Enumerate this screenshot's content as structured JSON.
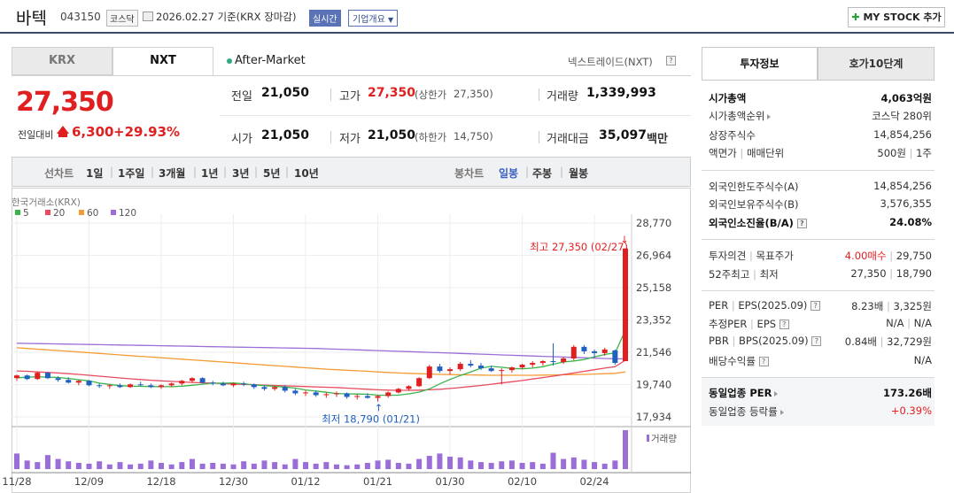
{
  "header": {
    "name": "바텍",
    "code": "043150",
    "market": "코스닥",
    "date_text": "2026.02.27  기준(KRX 장마감)",
    "realtime": "실시간",
    "company_btn": "기업개요",
    "mystock": "MY STOCK 추가"
  },
  "tabs": {
    "krx": "KRX",
    "nxt": "NXT"
  },
  "after_market": "After-Market",
  "nextrade_link": "넥스트레이드(NXT)",
  "quote": {
    "price": "27,350",
    "chg_label": "전일대비",
    "chg": "6,300",
    "chg_pct": "+29.93%",
    "prev_label": "전일",
    "prev": "21,050",
    "high_label": "고가",
    "high": "27,350",
    "upper_label": "(상한가",
    "upper": "27,350)",
    "volume_label": "거래량",
    "volume": "1,339,993",
    "open_label": "시가",
    "open": "21,050",
    "low_label": "저가",
    "low": "21,050",
    "lower_label": "(하한가",
    "lower": "14,750)",
    "amount_label": "거래대금",
    "amount": "35,097",
    "amount_unit": "백만"
  },
  "toolbar": {
    "linechart": "선차트",
    "d1": "1일",
    "w1": "1주일",
    "m3": "3개월",
    "y1": "1년",
    "y3": "3년",
    "y5": "5년",
    "y10": "10년",
    "candle": "봉차트",
    "daily": "일봉",
    "weekly": "주봉",
    "monthly": "월봉"
  },
  "colors": {
    "red": "#e02020",
    "blue": "#2060c0",
    "ma5": "#3cb44b",
    "ma20": "#e84a5f",
    "ma60": "#f39c33",
    "ma120": "#9b6dd6",
    "vol": "#9b6dd6"
  },
  "chart_data": {
    "type": "candlestick",
    "title": "한국거래소(KRX)",
    "legend": [
      "5",
      "20",
      "60",
      "120"
    ],
    "y_ticks": [
      28770,
      26964,
      25158,
      23352,
      21546,
      19740,
      17934
    ],
    "y_tick_labels": [
      "28,770",
      "26,964",
      "25,158",
      "23,352",
      "21,546",
      "19,740",
      "17,934"
    ],
    "ylim": [
      17934,
      28770
    ],
    "x_ticks": [
      {
        "label": "11/28",
        "i": 0
      },
      {
        "label": "12/09",
        "i": 7
      },
      {
        "label": "12/18",
        "i": 14
      },
      {
        "label": "12/30",
        "i": 21
      },
      {
        "label": "01/12",
        "i": 28
      },
      {
        "label": "01/21",
        "i": 35
      },
      {
        "label": "01/30",
        "i": 42
      },
      {
        "label": "02/10",
        "i": 49
      },
      {
        "label": "02/24",
        "i": 56
      }
    ],
    "max_label": "최고 27,350 (02/27)",
    "min_label": "최저 18,790 (01/21)",
    "volume_label": "거래량",
    "candles": [
      [
        20100,
        20300,
        19950,
        20250
      ],
      [
        20250,
        20300,
        20000,
        20050
      ],
      [
        20050,
        20450,
        20000,
        20400
      ],
      [
        20400,
        20450,
        20050,
        20100
      ],
      [
        20100,
        20200,
        19900,
        20000
      ],
      [
        20000,
        20150,
        19800,
        19850
      ],
      [
        19850,
        20000,
        19700,
        19950
      ],
      [
        19950,
        20000,
        19650,
        19700
      ],
      [
        19700,
        19800,
        19550,
        19650
      ],
      [
        19650,
        19750,
        19500,
        19700
      ],
      [
        19700,
        19800,
        19550,
        19600
      ],
      [
        19600,
        19800,
        19550,
        19750
      ],
      [
        19750,
        19900,
        19650,
        19700
      ],
      [
        19700,
        19800,
        19550,
        19600
      ],
      [
        19600,
        19750,
        19500,
        19700
      ],
      [
        19700,
        19850,
        19600,
        19800
      ],
      [
        19800,
        20000,
        19700,
        19950
      ],
      [
        19950,
        20150,
        19850,
        20100
      ],
      [
        20100,
        20150,
        19800,
        19850
      ],
      [
        19850,
        19950,
        19700,
        19800
      ],
      [
        19800,
        19900,
        19650,
        19700
      ],
      [
        19700,
        19850,
        19600,
        19800
      ],
      [
        19800,
        19900,
        19650,
        19750
      ],
      [
        19750,
        19800,
        19500,
        19600
      ],
      [
        19600,
        19700,
        19400,
        19500
      ],
      [
        19500,
        19650,
        19400,
        19600
      ],
      [
        19600,
        19700,
        19300,
        19400
      ],
      [
        19400,
        19500,
        19150,
        19250
      ],
      [
        19250,
        19400,
        19100,
        19300
      ],
      [
        19300,
        19400,
        19050,
        19150
      ],
      [
        19150,
        19300,
        19000,
        19200
      ],
      [
        19200,
        19350,
        19050,
        19250
      ],
      [
        19250,
        19300,
        18950,
        19050
      ],
      [
        19050,
        19200,
        18900,
        19100
      ],
      [
        19100,
        19250,
        18950,
        19000
      ],
      [
        19000,
        19150,
        18790,
        19100
      ],
      [
        19100,
        19350,
        19000,
        19300
      ],
      [
        19300,
        19550,
        19250,
        19500
      ],
      [
        19500,
        19700,
        19400,
        19650
      ],
      [
        19650,
        20150,
        19600,
        20100
      ],
      [
        20100,
        20850,
        20050,
        20750
      ],
      [
        20750,
        20900,
        20400,
        20500
      ],
      [
        20500,
        20700,
        20300,
        20600
      ],
      [
        20600,
        21000,
        20500,
        20900
      ],
      [
        20900,
        21100,
        20700,
        20800
      ],
      [
        20800,
        20950,
        20550,
        20650
      ],
      [
        20650,
        20800,
        20450,
        20500
      ],
      [
        20500,
        20650,
        19750,
        20550
      ],
      [
        20550,
        20750,
        20400,
        20700
      ],
      [
        20700,
        20900,
        20600,
        20850
      ],
      [
        20850,
        21050,
        20700,
        20950
      ],
      [
        20950,
        21100,
        20800,
        21050
      ],
      [
        21050,
        22050,
        20800,
        21000
      ],
      [
        21000,
        21300,
        20900,
        21200
      ],
      [
        21200,
        21950,
        21100,
        21850
      ],
      [
        21850,
        21950,
        21450,
        21600
      ],
      [
        21600,
        21700,
        21250,
        21500
      ],
      [
        21500,
        21800,
        21350,
        21700
      ],
      [
        21650,
        21700,
        20850,
        20950
      ],
      [
        21050,
        27350,
        21050,
        27350
      ]
    ],
    "volumes": [
      40,
      22,
      18,
      36,
      26,
      20,
      16,
      14,
      20,
      12,
      18,
      12,
      14,
      22,
      16,
      12,
      18,
      26,
      14,
      16,
      14,
      12,
      20,
      14,
      22,
      18,
      12,
      26,
      18,
      14,
      18,
      12,
      10,
      12,
      16,
      22,
      24,
      16,
      14,
      26,
      34,
      40,
      32,
      30,
      22,
      18,
      16,
      20,
      22,
      16,
      18,
      14,
      42,
      26,
      30,
      24,
      18,
      14,
      22,
      100
    ],
    "ma5": [
      20120,
      20150,
      20180,
      20150,
      20140,
      20080,
      20010,
      19950,
      19820,
      19750,
      19680,
      19650,
      19640,
      19630,
      19620,
      19620,
      19650,
      19700,
      19760,
      19820,
      19820,
      19830,
      19780,
      19720,
      19680,
      19640,
      19600,
      19540,
      19440,
      19380,
      19310,
      19240,
      19220,
      19210,
      19200,
      19150,
      19140,
      19150,
      19220,
      19320,
      19500,
      19780,
      20030,
      20250,
      20440,
      20660,
      20760,
      20710,
      20640,
      20620,
      20660,
      20740,
      20880,
      21000,
      21060,
      21140,
      21290,
      21420,
      21510,
      22780
    ],
    "ma20": [
      20500,
      20480,
      20450,
      20420,
      20390,
      20350,
      20310,
      20260,
      20210,
      20160,
      20110,
      20060,
      20020,
      19980,
      19950,
      19920,
      19890,
      19860,
      19840,
      19820,
      19790,
      19770,
      19750,
      19730,
      19710,
      19690,
      19670,
      19650,
      19630,
      19610,
      19590,
      19570,
      19540,
      19510,
      19480,
      19450,
      19430,
      19420,
      19420,
      19430,
      19450,
      19480,
      19520,
      19570,
      19630,
      19690,
      19760,
      19830,
      19900,
      19970,
      20050,
      20130,
      20210,
      20300,
      20390,
      20480,
      20570,
      20660,
      20740,
      21100
    ],
    "ma60": [
      21800,
      21760,
      21720,
      21680,
      21640,
      21600,
      21560,
      21520,
      21480,
      21440,
      21400,
      21360,
      21320,
      21280,
      21240,
      21200,
      21160,
      21120,
      21080,
      21040,
      21000,
      20960,
      20920,
      20880,
      20840,
      20800,
      20760,
      20720,
      20680,
      20640,
      20600,
      20570,
      20540,
      20510,
      20480,
      20450,
      20420,
      20390,
      20370,
      20350,
      20330,
      20310,
      20300,
      20290,
      20280,
      20270,
      20260,
      20260,
      20260,
      20260,
      20260,
      20270,
      20280,
      20290,
      20300,
      20310,
      20330,
      20350,
      20370,
      20450
    ],
    "ma120": [
      22050,
      22040,
      22030,
      22020,
      22010,
      22000,
      21990,
      21980,
      21970,
      21960,
      21950,
      21940,
      21930,
      21920,
      21910,
      21900,
      21890,
      21880,
      21870,
      21860,
      21850,
      21840,
      21830,
      21820,
      21810,
      21800,
      21790,
      21780,
      21770,
      21760,
      21740,
      21720,
      21700,
      21680,
      21660,
      21640,
      21620,
      21600,
      21580,
      21560,
      21540,
      21520,
      21500,
      21480,
      21460,
      21440,
      21420,
      21400,
      21380,
      21360,
      21340,
      21320,
      21300,
      21280,
      21260,
      21240,
      21220,
      21200,
      21180,
      21180
    ]
  },
  "panel": {
    "tab1": "투자정보",
    "tab2": "호가10단계",
    "mktcap_l": "시가총액",
    "mktcap_v": "4,063억원",
    "rank_l": "시가총액순위",
    "rank_v": "코스닥 280위",
    "shares_l": "상장주식수",
    "shares_v": "14,854,256",
    "face_l": "액면가",
    "face_l2": "매매단위",
    "face_v": "500원",
    "unit_v": "1주",
    "fl_l": "외국인한도주식수(A)",
    "fl_v": "14,854,256",
    "fh_l": "외국인보유주식수(B)",
    "fh_v": "3,576,355",
    "fr_l": "외국인소진율(B/A)",
    "fr_v": "24.08%",
    "op_l": "투자의견",
    "op_l2": "목표주가",
    "op_v": "4.00매수",
    "tp_v": "29,750",
    "w52_l": "52주최고",
    "w52_l2": "최저",
    "w52_h": "27,350",
    "w52_lo": "18,790",
    "per_l": "PER",
    "eps_l": "EPS(2025.09)",
    "per_v": "8.23배",
    "eps_v": "3,325원",
    "eper_l": "추정PER",
    "eeps_l": "EPS",
    "eper_v": "N/A",
    "eeps_v": "N/A",
    "pbr_l": "PBR",
    "bps_l": "BPS(2025.09)",
    "pbr_v": "0.84배",
    "bps_v": "32,729원",
    "div_l": "배당수익률",
    "div_v": "N/A",
    "ind_per_l": "동일업종 PER",
    "ind_per_v": "173.26배",
    "ind_chg_l": "동일업종 등락률",
    "ind_chg_v": "+0.39%"
  }
}
